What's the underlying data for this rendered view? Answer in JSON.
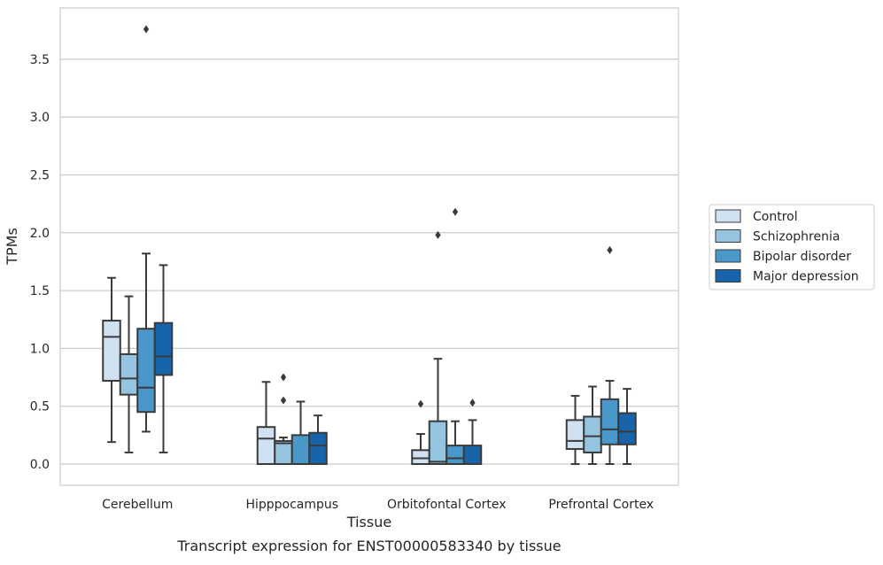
{
  "chart_data": {
    "type": "box",
    "xlabel": "Tissue",
    "ylabel": "TPMs",
    "caption": "Transcript expression for ENST00000583340 by tissue",
    "categories": [
      "Cerebellum",
      "Hipppocampus",
      "Orbitofontal Cortex",
      "Prefrontal Cortex"
    ],
    "ylim": [
      -0.18,
      3.95
    ],
    "yticks": [
      "0.0",
      "0.5",
      "1.0",
      "1.5",
      "2.0",
      "2.5",
      "3.0",
      "3.5"
    ],
    "ytick_values": [
      0.0,
      0.5,
      1.0,
      1.5,
      2.0,
      2.5,
      3.0,
      3.5
    ],
    "grid": "horizontal",
    "legend_position": "right",
    "series": [
      {
        "name": "Control",
        "color": "#d0e1f2",
        "boxes": [
          {
            "whislo": 0.19,
            "q1": 0.72,
            "med": 1.1,
            "q3": 1.24,
            "whishi": 1.61,
            "fliers": []
          },
          {
            "whislo": 0.0,
            "q1": 0.0,
            "med": 0.22,
            "q3": 0.32,
            "whishi": 0.71,
            "fliers": []
          },
          {
            "whislo": 0.0,
            "q1": 0.0,
            "med": 0.05,
            "q3": 0.12,
            "whishi": 0.26,
            "fliers": [
              0.52
            ]
          },
          {
            "whislo": 0.0,
            "q1": 0.13,
            "med": 0.2,
            "q3": 0.38,
            "whishi": 0.59,
            "fliers": []
          }
        ]
      },
      {
        "name": "Schizophrenia",
        "color": "#94c4df",
        "boxes": [
          {
            "whislo": 0.1,
            "q1": 0.6,
            "med": 0.74,
            "q3": 0.95,
            "whishi": 1.45,
            "fliers": []
          },
          {
            "whislo": 0.0,
            "q1": 0.0,
            "med": 0.18,
            "q3": 0.2,
            "whishi": 0.23,
            "fliers": [
              0.55,
              0.75
            ]
          },
          {
            "whislo": 0.0,
            "q1": 0.0,
            "med": 0.02,
            "q3": 0.37,
            "whishi": 0.91,
            "fliers": [
              1.98
            ]
          },
          {
            "whislo": 0.0,
            "q1": 0.1,
            "med": 0.24,
            "q3": 0.41,
            "whishi": 0.67,
            "fliers": []
          }
        ]
      },
      {
        "name": "Bipolar disorder",
        "color": "#4a98c9",
        "boxes": [
          {
            "whislo": 0.28,
            "q1": 0.45,
            "med": 0.66,
            "q3": 1.17,
            "whishi": 1.82,
            "fliers": [
              3.76
            ]
          },
          {
            "whislo": 0.0,
            "q1": 0.0,
            "med": 0.0,
            "q3": 0.25,
            "whishi": 0.54,
            "fliers": []
          },
          {
            "whislo": 0.0,
            "q1": 0.0,
            "med": 0.05,
            "q3": 0.16,
            "whishi": 0.37,
            "fliers": [
              2.18
            ]
          },
          {
            "whislo": 0.0,
            "q1": 0.17,
            "med": 0.3,
            "q3": 0.56,
            "whishi": 0.72,
            "fliers": [
              1.85
            ]
          }
        ]
      },
      {
        "name": "Major depression",
        "color": "#1764ab",
        "boxes": [
          {
            "whislo": 0.1,
            "q1": 0.77,
            "med": 0.93,
            "q3": 1.22,
            "whishi": 1.72,
            "fliers": []
          },
          {
            "whislo": 0.0,
            "q1": 0.0,
            "med": 0.16,
            "q3": 0.27,
            "whishi": 0.42,
            "fliers": []
          },
          {
            "whislo": 0.0,
            "q1": 0.0,
            "med": 0.0,
            "q3": 0.16,
            "whishi": 0.38,
            "fliers": [
              0.53
            ]
          },
          {
            "whislo": 0.0,
            "q1": 0.17,
            "med": 0.28,
            "q3": 0.44,
            "whishi": 0.65,
            "fliers": []
          }
        ]
      }
    ]
  }
}
